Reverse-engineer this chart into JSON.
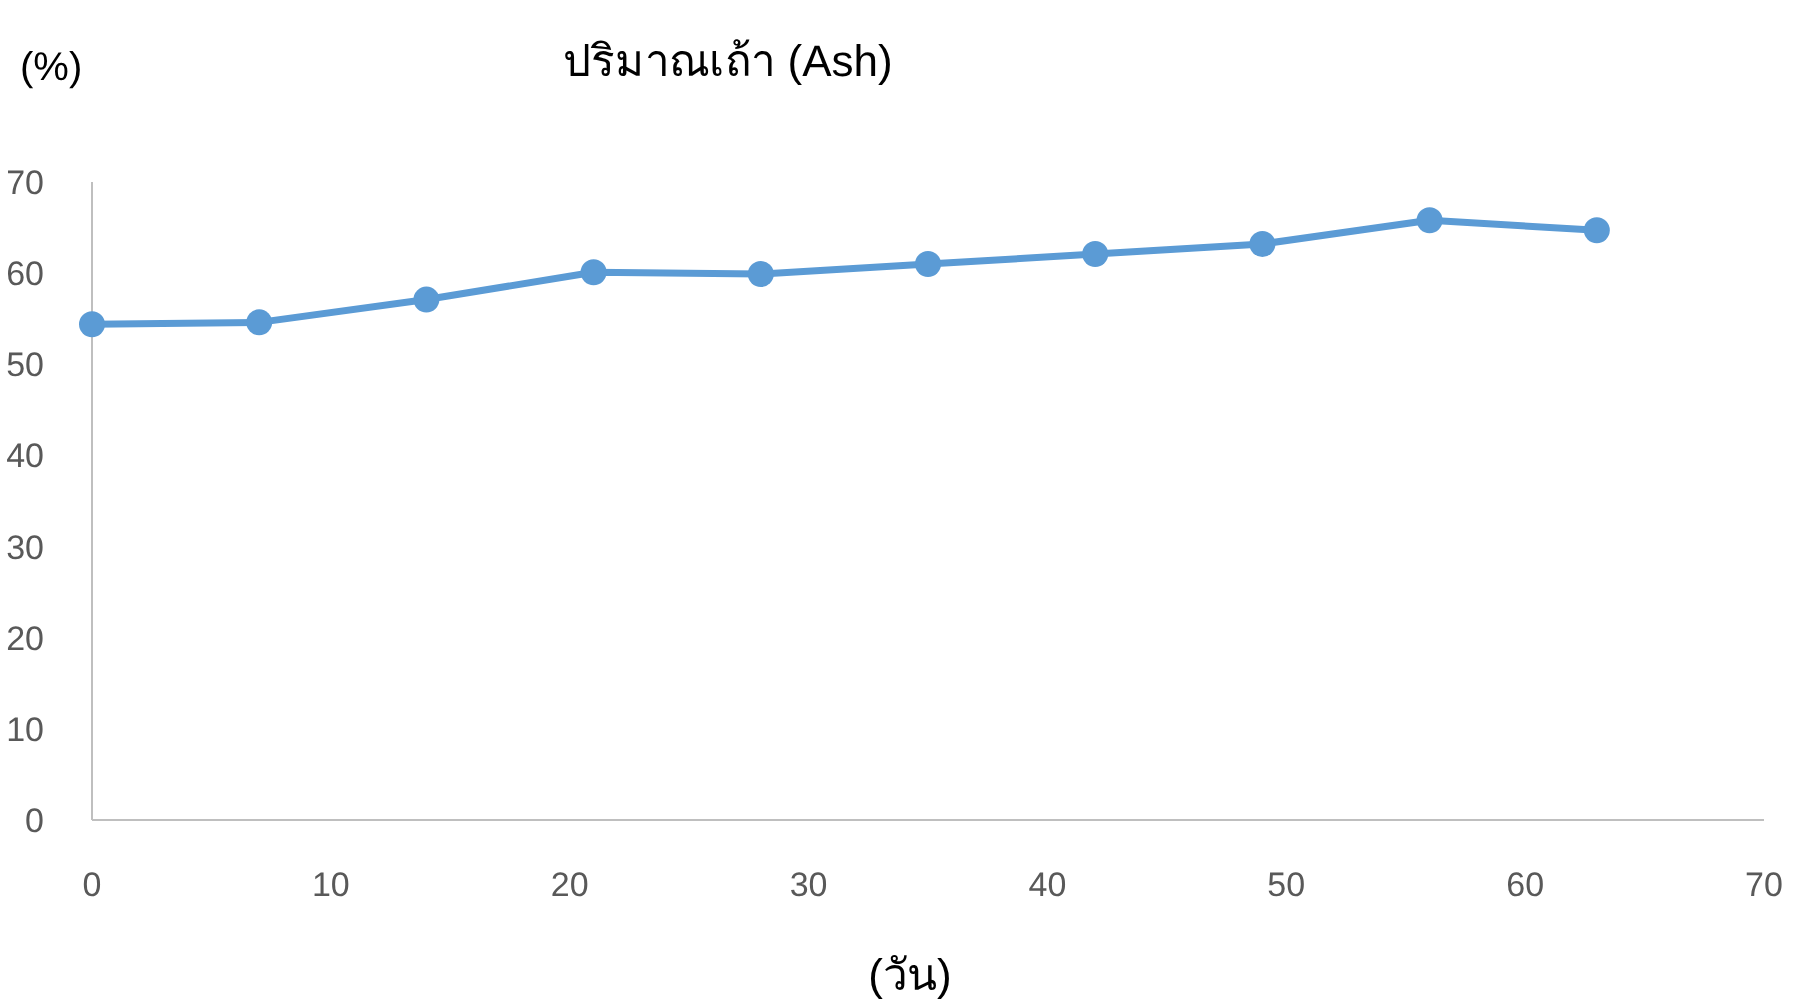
{
  "chart_data": {
    "type": "line",
    "title": "ปริมาณเถ้า (Ash)",
    "xlabel": "(วัน)",
    "ylabel": "(%)",
    "x": [
      0,
      7,
      14,
      21,
      28,
      35,
      42,
      49,
      56,
      63
    ],
    "series": [
      {
        "color": "#5b9bd5",
        "values": [
          54.4,
          54.6,
          57.1,
          60.1,
          59.9,
          61.0,
          62.1,
          63.2,
          65.8,
          64.7
        ]
      }
    ],
    "xlim": [
      0,
      70
    ],
    "ylim": [
      0,
      70
    ],
    "xticks": [
      0,
      10,
      20,
      30,
      40,
      50,
      60,
      70
    ],
    "yticks": [
      0,
      10,
      20,
      30,
      40,
      50,
      60,
      70
    ],
    "marker": "circle",
    "line_style": "solid"
  }
}
